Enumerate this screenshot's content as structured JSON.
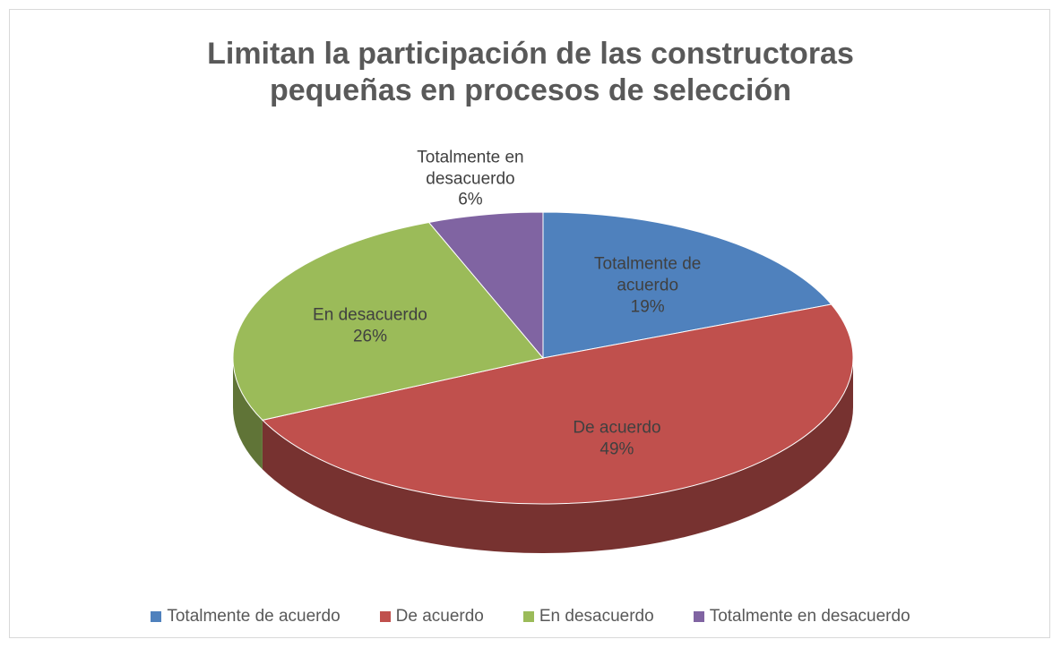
{
  "chart_data": {
    "type": "pie",
    "title": "Limitan la participación de las constructoras pequeñas en procesos de selección",
    "categories": [
      "Totalmente de acuerdo",
      "De acuerdo",
      "En desacuerdo",
      "Totalmente en desacuerdo"
    ],
    "values": [
      19,
      49,
      26,
      6
    ],
    "value_labels": [
      "19%",
      "49%",
      "26%",
      "6%"
    ],
    "colors": [
      "#4f81bd",
      "#c0504d",
      "#9bbb59",
      "#8064a2"
    ],
    "legend": "bottom"
  }
}
